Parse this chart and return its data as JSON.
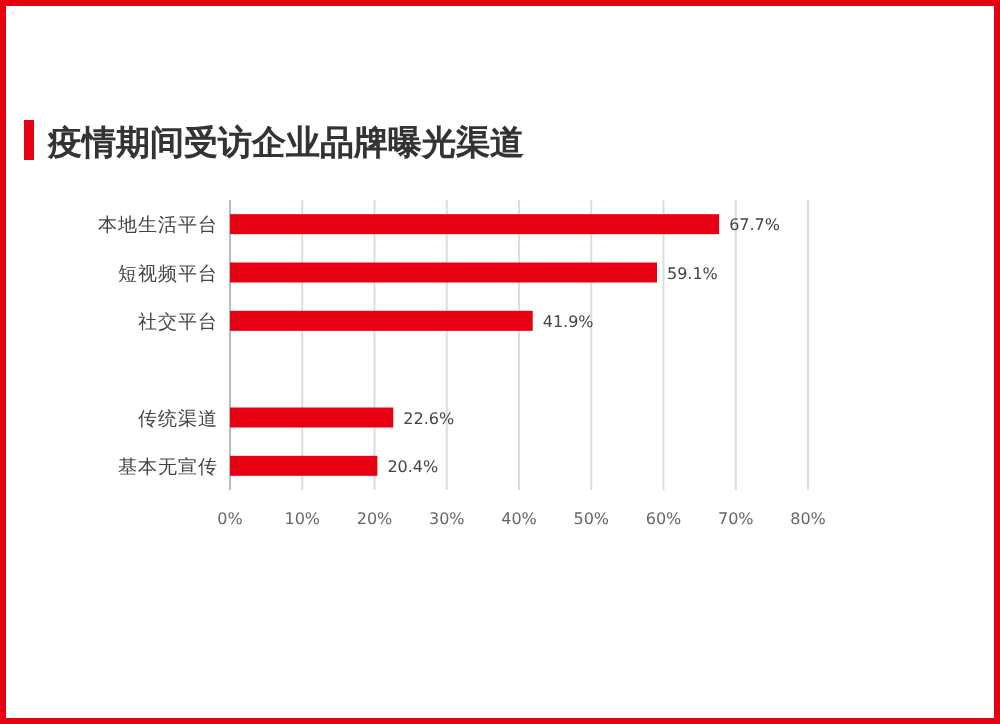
{
  "chart_data": {
    "type": "bar",
    "orientation": "horizontal",
    "title": "疫情期间受访企业品牌曝光渠道",
    "categories": [
      "本地生活平台",
      "短视频平台",
      "社交平台",
      null,
      "传统渠道",
      "基本无宣传"
    ],
    "values": [
      67.7,
      59.1,
      41.9,
      null,
      22.6,
      20.4
    ],
    "value_labels": [
      "67.7%",
      "59.1%",
      "41.9%",
      null,
      "22.6%",
      "20.4%"
    ],
    "color": "#e60012",
    "xlim": [
      0,
      80
    ],
    "xticks": [
      {
        "value": 0,
        "label": "0%"
      },
      {
        "value": 10,
        "label": "10%"
      },
      {
        "value": 20,
        "label": "20%"
      },
      {
        "value": 30,
        "label": "30%"
      },
      {
        "value": 40,
        "label": "40%"
      },
      {
        "value": 50,
        "label": "50%"
      },
      {
        "value": 60,
        "label": "60%"
      },
      {
        "value": 70,
        "label": "70%"
      },
      {
        "value": 80,
        "label": "80%"
      }
    ],
    "grid": "x"
  }
}
